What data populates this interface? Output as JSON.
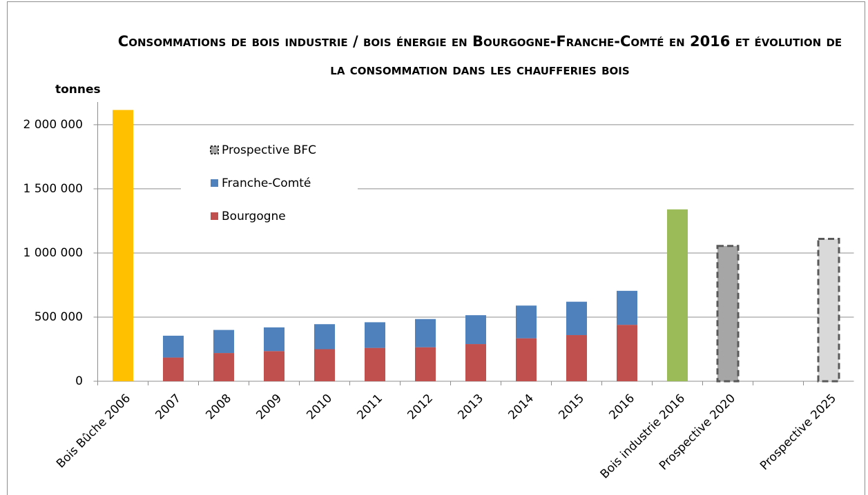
{
  "chart_data": {
    "type": "bar",
    "title": "Consommations de bois industrie / bois énergie en Bourgogne-Franche-Comté en 2016 et évolution de la consommation dans les chaufferies bois",
    "ylabel": "tonnes",
    "categories": [
      "Bois Bûche 2006",
      "2007",
      "2008",
      "2009",
      "2010",
      "2011",
      "2012",
      "2013",
      "2014",
      "2015",
      "2016",
      "Bois industrie 2016",
      "Prospective 2020",
      null,
      "Prospective 2025"
    ],
    "series": [
      {
        "name": "Bourgogne",
        "color": "#c0504d",
        "values": [
          null,
          185000,
          220000,
          235000,
          250000,
          260000,
          265000,
          290000,
          335000,
          360000,
          440000,
          null,
          null,
          null,
          null
        ]
      },
      {
        "name": "Franche-Comté",
        "color": "#4f81bd",
        "values": [
          null,
          170000,
          180000,
          185000,
          195000,
          200000,
          220000,
          225000,
          255000,
          260000,
          265000,
          null,
          null,
          null,
          null
        ]
      },
      {
        "name": "Prospective BFC",
        "color": "#a6a6a6",
        "dashed": true,
        "colors": [
          null,
          null,
          null,
          null,
          null,
          null,
          null,
          null,
          null,
          null,
          null,
          null,
          "#a6a6a6",
          null,
          "#d9d9d9"
        ],
        "values": [
          null,
          null,
          null,
          null,
          null,
          null,
          null,
          null,
          null,
          null,
          null,
          null,
          1055000,
          null,
          1110000
        ]
      },
      {
        "color": "#ffc000",
        "values": [
          2115000,
          null,
          null,
          null,
          null,
          null,
          null,
          null,
          null,
          null,
          null,
          null,
          null,
          null,
          null
        ]
      },
      {
        "color": "#9bbb59",
        "values": [
          null,
          null,
          null,
          null,
          null,
          null,
          null,
          null,
          null,
          null,
          null,
          1340000,
          null,
          null,
          null
        ]
      }
    ],
    "stacked": true,
    "ylim": [
      0,
      2150000
    ],
    "yticks": [
      0,
      {
        "value": 500000,
        "label": "500 000"
      },
      {
        "value": 1000000,
        "label": "1 000 000"
      },
      {
        "value": 1500000,
        "label": "1 500 000"
      },
      {
        "value": 2000000,
        "label": "2 000 000"
      }
    ],
    "grid": true
  }
}
